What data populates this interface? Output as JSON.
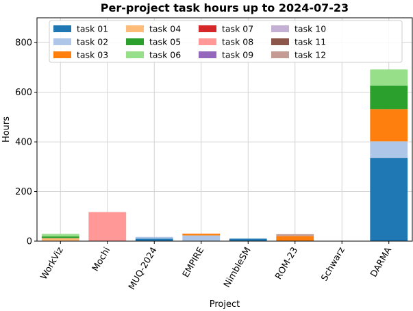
{
  "chart_data": {
    "type": "bar",
    "stacked": true,
    "title": "Per-project task hours up to 2024-07-23",
    "xlabel": "Project",
    "ylabel": "Hours",
    "ylim": [
      0,
      900
    ],
    "yticks": [
      0,
      200,
      400,
      600,
      800
    ],
    "grid": true,
    "legend_position": "top",
    "categories": [
      "WorkViz",
      "Mochi",
      "MUQ-2024",
      "EMPIRE",
      "NimbleSM",
      "ROM-23",
      "Schwarz",
      "DARMA"
    ],
    "series": [
      {
        "name": "task 01",
        "color": "#1f77b4",
        "values": [
          0,
          0,
          10,
          0,
          10,
          0,
          0,
          335
        ]
      },
      {
        "name": "task 02",
        "color": "#aec7e8",
        "values": [
          0,
          0,
          7,
          23,
          0,
          0,
          0,
          67
        ]
      },
      {
        "name": "task 03",
        "color": "#ff7f0e",
        "values": [
          0,
          0,
          0,
          7,
          0,
          20,
          0,
          130
        ]
      },
      {
        "name": "task 04",
        "color": "#ffbb78",
        "values": [
          12,
          0,
          0,
          0,
          0,
          0,
          0,
          0
        ]
      },
      {
        "name": "task 05",
        "color": "#2ca02c",
        "values": [
          7,
          0,
          0,
          0,
          0,
          0,
          0,
          95
        ]
      },
      {
        "name": "task 06",
        "color": "#98df8a",
        "values": [
          10,
          0,
          0,
          0,
          0,
          0,
          0,
          65
        ]
      },
      {
        "name": "task 07",
        "color": "#d62728",
        "values": [
          0,
          0,
          0,
          0,
          0,
          0,
          0,
          0
        ]
      },
      {
        "name": "task 08",
        "color": "#ff9896",
        "values": [
          0,
          117,
          0,
          0,
          0,
          0,
          0,
          0
        ]
      },
      {
        "name": "task 09",
        "color": "#9467bd",
        "values": [
          0,
          0,
          0,
          0,
          0,
          0,
          0,
          0
        ]
      },
      {
        "name": "task 10",
        "color": "#c5b0d5",
        "values": [
          0,
          0,
          0,
          0,
          0,
          0,
          0,
          0
        ]
      },
      {
        "name": "task 11",
        "color": "#8c564b",
        "values": [
          0,
          0,
          0,
          0,
          0,
          0,
          0,
          0
        ]
      },
      {
        "name": "task 12",
        "color": "#c49c94",
        "values": [
          0,
          0,
          0,
          0,
          0,
          8,
          0,
          0
        ]
      }
    ]
  }
}
